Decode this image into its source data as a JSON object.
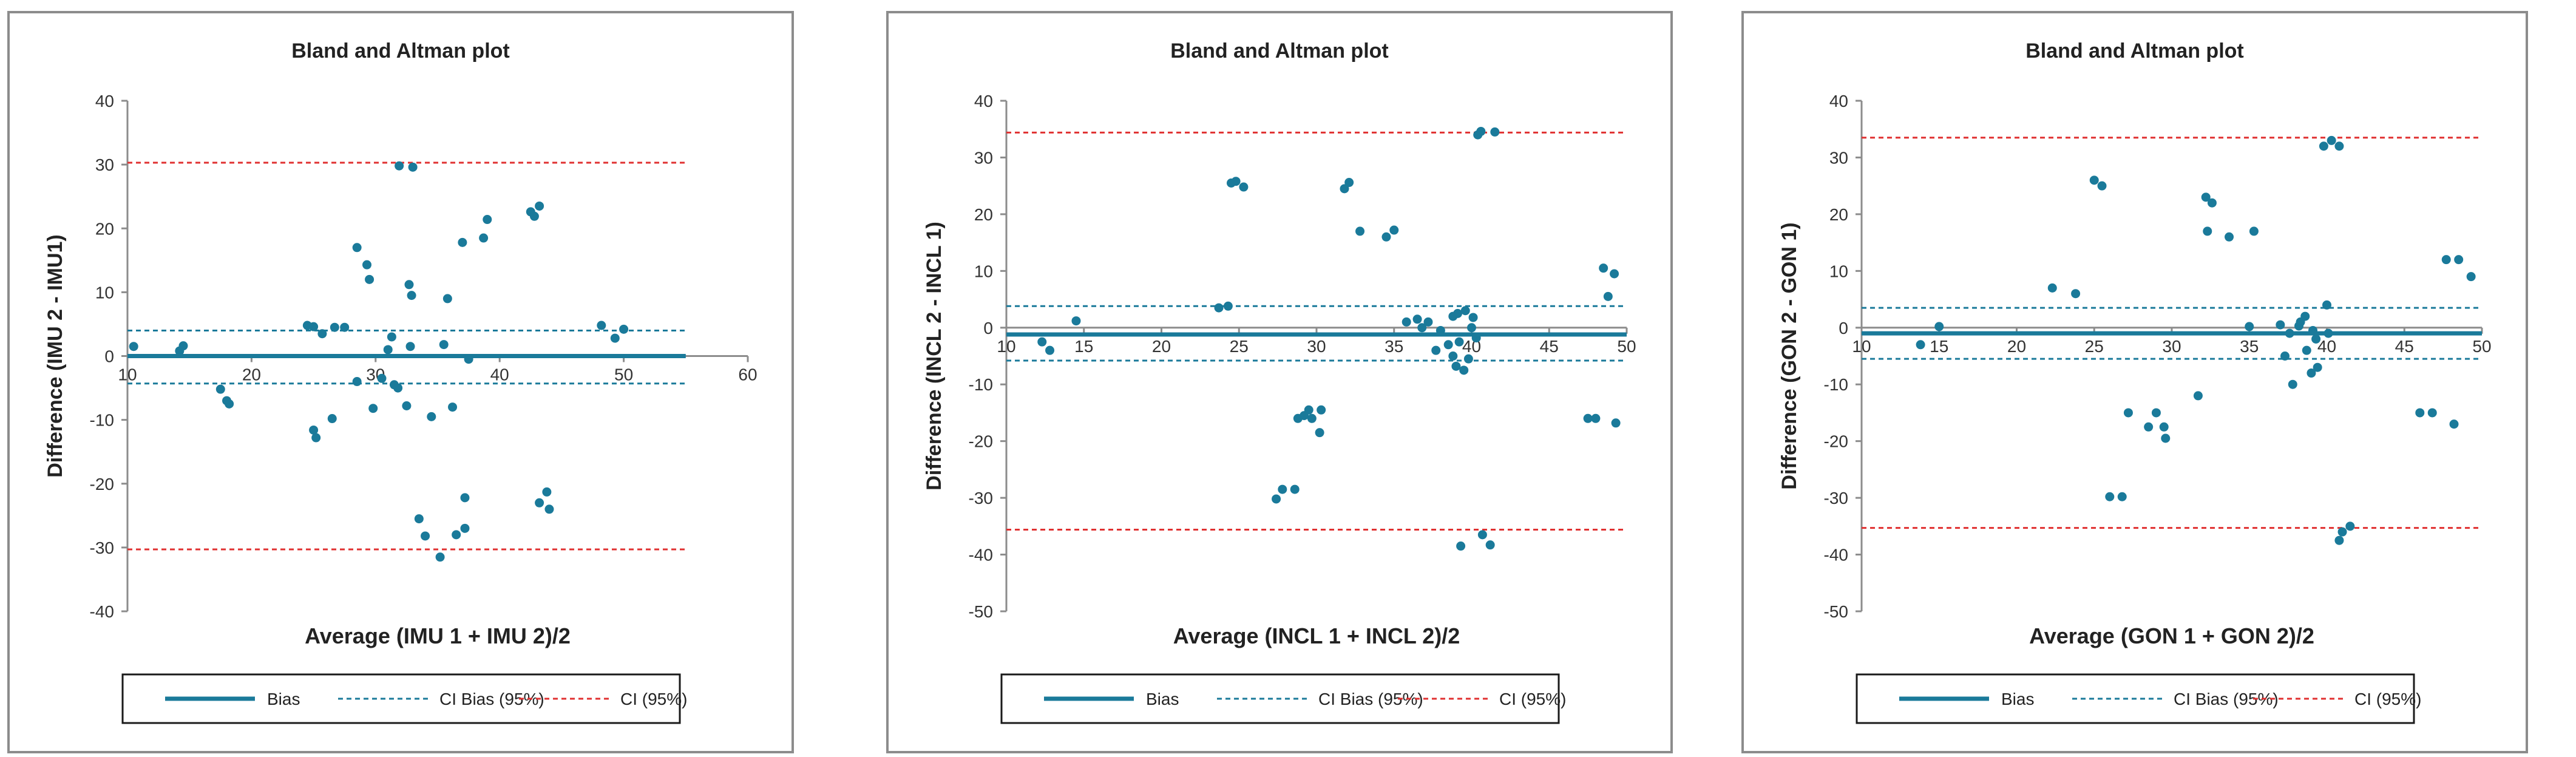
{
  "chart_data": [
    {
      "type": "scatter",
      "title": "Bland and Altman plot",
      "xlabel": "Average (IMU 1 + IMU 2)/2",
      "ylabel": "Difference (IMU 2 - IMU1)",
      "xlim": [
        10,
        60
      ],
      "ylim": [
        -40,
        40
      ],
      "xticks": [
        10,
        20,
        30,
        40,
        50,
        60
      ],
      "yticks": [
        -40,
        -30,
        -20,
        -10,
        0,
        10,
        20,
        30,
        40
      ],
      "bias": 0,
      "ci_bias": [
        4,
        -4.3
      ],
      "ci": [
        30.3,
        -30.3
      ],
      "line_x_range": [
        10,
        55
      ],
      "legend": [
        "Bias",
        "CI Bias (95%)",
        "CI (95%)"
      ],
      "colors": {
        "points": "#1a7a9a",
        "bias": "#1a7a9a",
        "ci_bias": "#1a7a9a",
        "ci": "#e03030"
      },
      "points": [
        [
          10.5,
          1.5
        ],
        [
          14.2,
          0.8
        ],
        [
          14.5,
          1.6
        ],
        [
          17.5,
          -5.2
        ],
        [
          18.0,
          -7.0
        ],
        [
          18.2,
          -7.5
        ],
        [
          24.5,
          4.8
        ],
        [
          25.0,
          4.6
        ],
        [
          25.0,
          -11.6
        ],
        [
          25.2,
          -12.8
        ],
        [
          25.7,
          3.5
        ],
        [
          26.5,
          -9.8
        ],
        [
          26.7,
          4.5
        ],
        [
          27.5,
          4.5
        ],
        [
          28.5,
          17.0
        ],
        [
          28.5,
          -4.0
        ],
        [
          29.3,
          14.3
        ],
        [
          29.5,
          12.0
        ],
        [
          29.8,
          -8.2
        ],
        [
          30.5,
          -3.5
        ],
        [
          31.0,
          1.0
        ],
        [
          31.3,
          3.0
        ],
        [
          31.5,
          -4.5
        ],
        [
          31.8,
          -5.0
        ],
        [
          31.9,
          29.8
        ],
        [
          32.5,
          -7.8
        ],
        [
          32.7,
          11.2
        ],
        [
          32.8,
          1.5
        ],
        [
          32.9,
          9.5
        ],
        [
          33.0,
          29.6
        ],
        [
          33.5,
          -25.5
        ],
        [
          34.0,
          -28.2
        ],
        [
          34.5,
          -9.5
        ],
        [
          35.2,
          -31.5
        ],
        [
          35.5,
          1.8
        ],
        [
          35.8,
          9.0
        ],
        [
          36.2,
          -8.0
        ],
        [
          36.5,
          -28.0
        ],
        [
          37.0,
          17.8
        ],
        [
          37.2,
          -27.0
        ],
        [
          37.2,
          -22.2
        ],
        [
          37.5,
          -0.5
        ],
        [
          38.7,
          18.5
        ],
        [
          39.0,
          21.4
        ],
        [
          42.5,
          22.6
        ],
        [
          42.8,
          21.9
        ],
        [
          43.2,
          23.5
        ],
        [
          43.2,
          -23.0
        ],
        [
          43.8,
          -21.3
        ],
        [
          44.0,
          -24.0
        ],
        [
          48.2,
          4.8
        ],
        [
          49.3,
          2.8
        ],
        [
          50.0,
          4.2
        ]
      ]
    },
    {
      "type": "scatter",
      "title": "Bland and Altman plot",
      "xlabel": "Average (INCL 1 + INCL 2)/2",
      "ylabel": "Difference (INCL 2 - INCL 1)",
      "xlim": [
        10,
        50
      ],
      "ylim": [
        -50,
        40
      ],
      "xticks": [
        10,
        15,
        20,
        25,
        30,
        35,
        40,
        45,
        50
      ],
      "yticks": [
        -50,
        -40,
        -30,
        -20,
        -10,
        0,
        10,
        20,
        30,
        40
      ],
      "bias": -1.2,
      "ci_bias": [
        3.8,
        -5.8
      ],
      "ci": [
        34.4,
        -35.6
      ],
      "line_x_range": [
        10,
        50
      ],
      "legend": [
        "Bias",
        "CI Bias (95%)",
        "CI (95%)"
      ],
      "colors": {
        "points": "#1a7a9a",
        "bias": "#1a7a9a",
        "ci_bias": "#1a7a9a",
        "ci": "#e03030"
      },
      "points": [
        [
          12.3,
          -2.5
        ],
        [
          12.8,
          -4.0
        ],
        [
          14.5,
          1.2
        ],
        [
          23.7,
          3.5
        ],
        [
          24.3,
          3.8
        ],
        [
          24.5,
          25.5
        ],
        [
          24.8,
          25.8
        ],
        [
          25.3,
          24.8
        ],
        [
          27.4,
          -30.2
        ],
        [
          27.8,
          -28.5
        ],
        [
          28.6,
          -28.5
        ],
        [
          28.8,
          -16.0
        ],
        [
          29.2,
          -15.5
        ],
        [
          29.5,
          -14.5
        ],
        [
          29.7,
          -16.0
        ],
        [
          30.2,
          -18.5
        ],
        [
          30.3,
          -14.5
        ],
        [
          31.8,
          24.5
        ],
        [
          32.1,
          25.6
        ],
        [
          32.8,
          17.0
        ],
        [
          34.5,
          16.0
        ],
        [
          35.0,
          17.2
        ],
        [
          35.8,
          1.0
        ],
        [
          36.5,
          1.5
        ],
        [
          36.8,
          0.0
        ],
        [
          37.2,
          1.0
        ],
        [
          37.7,
          -4.0
        ],
        [
          38.0,
          -0.5
        ],
        [
          38.5,
          -3.0
        ],
        [
          38.8,
          2.0
        ],
        [
          38.8,
          -5.0
        ],
        [
          39.0,
          -6.8
        ],
        [
          39.1,
          2.5
        ],
        [
          39.2,
          -2.5
        ],
        [
          39.3,
          -38.5
        ],
        [
          39.5,
          -7.5
        ],
        [
          39.6,
          3.0
        ],
        [
          39.8,
          -5.5
        ],
        [
          40.0,
          0.0
        ],
        [
          40.1,
          1.8
        ],
        [
          40.3,
          -1.8
        ],
        [
          40.4,
          34.0
        ],
        [
          40.6,
          34.6
        ],
        [
          40.7,
          -36.5
        ],
        [
          41.2,
          -38.3
        ],
        [
          41.5,
          34.5
        ],
        [
          47.5,
          -16.0
        ],
        [
          48.0,
          -16.0
        ],
        [
          48.5,
          10.5
        ],
        [
          48.8,
          5.5
        ],
        [
          49.2,
          9.5
        ],
        [
          49.3,
          -16.8
        ]
      ]
    },
    {
      "type": "scatter",
      "title": "Bland and Altman plot",
      "xlabel": "Average (GON 1 + GON 2)/2",
      "ylabel": "Difference (GON 2 - GON 1)",
      "xlim": [
        10,
        50
      ],
      "ylim": [
        -50,
        40
      ],
      "xticks": [
        10,
        15,
        20,
        25,
        30,
        35,
        40,
        45,
        50
      ],
      "yticks": [
        -50,
        -40,
        -30,
        -20,
        -10,
        0,
        10,
        20,
        30,
        40
      ],
      "bias": -1.0,
      "ci_bias": [
        3.5,
        -5.5
      ],
      "ci": [
        33.5,
        -35.3
      ],
      "line_x_range": [
        10,
        50
      ],
      "legend": [
        "Bias",
        "CI Bias (95%)",
        "CI (95%)"
      ],
      "colors": {
        "points": "#1a7a9a",
        "bias": "#1a7a9a",
        "ci_bias": "#1a7a9a",
        "ci": "#e03030"
      },
      "points": [
        [
          13.8,
          -3.0
        ],
        [
          15.0,
          0.2
        ],
        [
          22.3,
          7.0
        ],
        [
          23.8,
          6.0
        ],
        [
          25.0,
          26.0
        ],
        [
          25.5,
          25.0
        ],
        [
          26.0,
          -29.8
        ],
        [
          26.8,
          -29.8
        ],
        [
          27.2,
          -15.0
        ],
        [
          28.5,
          -17.5
        ],
        [
          29.0,
          -15.0
        ],
        [
          29.5,
          -17.5
        ],
        [
          29.6,
          -19.5
        ],
        [
          31.7,
          -12.0
        ],
        [
          32.2,
          23.0
        ],
        [
          32.3,
          17.0
        ],
        [
          32.6,
          22.0
        ],
        [
          33.7,
          16.0
        ],
        [
          35.0,
          0.2
        ],
        [
          35.3,
          17.0
        ],
        [
          37.0,
          0.5
        ],
        [
          37.3,
          -5.0
        ],
        [
          37.6,
          -1.0
        ],
        [
          37.8,
          -10.0
        ],
        [
          38.2,
          0.3
        ],
        [
          38.3,
          1.0
        ],
        [
          38.6,
          2.0
        ],
        [
          38.7,
          -4.0
        ],
        [
          39.0,
          -8.0
        ],
        [
          39.1,
          -0.5
        ],
        [
          39.3,
          -2.0
        ],
        [
          39.4,
          -7.0
        ],
        [
          39.8,
          32.0
        ],
        [
          40.0,
          4.0
        ],
        [
          40.1,
          -1.0
        ],
        [
          40.3,
          33.0
        ],
        [
          40.8,
          32.0
        ],
        [
          40.8,
          -37.5
        ],
        [
          41.0,
          -36.0
        ],
        [
          41.5,
          -35.0
        ],
        [
          46.0,
          -15.0
        ],
        [
          46.8,
          -15.0
        ],
        [
          47.7,
          12.0
        ],
        [
          48.2,
          -17.0
        ],
        [
          48.5,
          12.0
        ],
        [
          49.3,
          9.0
        ]
      ]
    }
  ]
}
